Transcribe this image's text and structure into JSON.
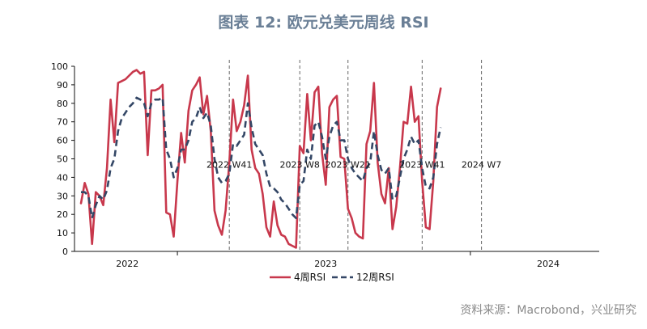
{
  "title": "图表 12: 欧元兑美元周线 RSI",
  "source": "资料来源：Macrobond，兴业研究",
  "colors": {
    "rsi4": "#c8384c",
    "rsi12": "#344766",
    "title": "#6a7f96",
    "vline": "#666666"
  },
  "chart_data": {
    "type": "line",
    "title": "图表 12: 欧元兑美元周线 RSI",
    "xlabel": "",
    "ylabel": "",
    "ylim": [
      0,
      100
    ],
    "yticks": [
      0,
      10,
      20,
      30,
      40,
      50,
      60,
      70,
      80,
      90,
      100
    ],
    "xlim": [
      0,
      138
    ],
    "year_labels": [
      {
        "label": "2022",
        "x": 12.5
      },
      {
        "label": "2023",
        "x": 66
      },
      {
        "label": "2024",
        "x": 126
      }
    ],
    "year_boundaries": [
      26,
      105
    ],
    "annotations": [
      {
        "text": "2022 W41",
        "x": 40,
        "y": 47
      },
      {
        "text": "2023 W8",
        "x": 59,
        "y": 47
      },
      {
        "text": "2023 W21",
        "x": 72,
        "y": 47
      },
      {
        "text": "2023 W41",
        "x": 92,
        "y": 47
      },
      {
        "text": "2024 W7",
        "x": 108,
        "y": 47
      }
    ],
    "vlines": [
      {
        "label": "2022 W41",
        "x": 40
      },
      {
        "label": "2023 W8",
        "x": 59
      },
      {
        "label": "2023 W21",
        "x": 72
      },
      {
        "label": "2023 W41",
        "x": 92
      },
      {
        "label": "2024 W7",
        "x": 108
      }
    ],
    "series": [
      {
        "name": "4周RSI",
        "style": "solid",
        "points": [
          [
            0,
            26
          ],
          [
            1,
            37
          ],
          [
            2,
            31
          ],
          [
            3,
            4
          ],
          [
            4,
            32
          ],
          [
            5,
            30
          ],
          [
            6,
            25
          ],
          [
            7,
            45
          ],
          [
            8,
            82
          ],
          [
            9,
            59
          ],
          [
            10,
            91
          ],
          [
            11,
            92
          ],
          [
            12,
            93
          ],
          [
            13,
            95
          ],
          [
            14,
            97
          ],
          [
            15,
            98
          ],
          [
            16,
            96
          ],
          [
            17,
            97
          ],
          [
            18,
            52
          ],
          [
            19,
            87
          ],
          [
            20,
            87
          ],
          [
            21,
            88
          ],
          [
            22,
            90
          ],
          [
            23,
            21
          ],
          [
            24,
            20
          ],
          [
            25,
            8
          ],
          [
            26,
            38
          ],
          [
            27,
            64
          ],
          [
            28,
            48
          ],
          [
            29,
            76
          ],
          [
            30,
            87
          ],
          [
            31,
            90
          ],
          [
            32,
            94
          ],
          [
            33,
            74
          ],
          [
            34,
            84
          ],
          [
            35,
            65
          ],
          [
            36,
            22
          ],
          [
            37,
            14
          ],
          [
            38,
            9
          ],
          [
            39,
            22
          ],
          [
            40,
            48
          ],
          [
            41,
            82
          ],
          [
            42,
            65
          ],
          [
            43,
            70
          ],
          [
            44,
            79
          ],
          [
            45,
            95
          ],
          [
            46,
            55
          ],
          [
            47,
            45
          ],
          [
            48,
            42
          ],
          [
            49,
            31
          ],
          [
            50,
            13
          ],
          [
            51,
            8
          ],
          [
            52,
            27
          ],
          [
            53,
            14
          ],
          [
            54,
            9
          ],
          [
            55,
            8
          ],
          [
            56,
            4
          ],
          [
            57,
            3
          ],
          [
            58,
            2
          ],
          [
            59,
            57
          ],
          [
            60,
            53
          ],
          [
            61,
            85
          ],
          [
            62,
            60
          ],
          [
            63,
            86
          ],
          [
            64,
            89
          ],
          [
            65,
            53
          ],
          [
            66,
            36
          ],
          [
            67,
            78
          ],
          [
            68,
            82
          ],
          [
            69,
            84
          ],
          [
            70,
            51
          ],
          [
            71,
            50
          ],
          [
            72,
            23
          ],
          [
            73,
            18
          ],
          [
            74,
            10
          ],
          [
            75,
            8
          ],
          [
            76,
            7
          ],
          [
            77,
            58
          ],
          [
            78,
            65
          ],
          [
            79,
            91
          ],
          [
            80,
            48
          ],
          [
            81,
            31
          ],
          [
            82,
            26
          ],
          [
            83,
            45
          ],
          [
            84,
            12
          ],
          [
            85,
            24
          ],
          [
            86,
            45
          ],
          [
            87,
            70
          ],
          [
            88,
            69
          ],
          [
            89,
            89
          ],
          [
            90,
            70
          ],
          [
            91,
            73
          ],
          [
            92,
            38
          ],
          [
            93,
            13
          ],
          [
            94,
            12
          ],
          [
            95,
            38
          ],
          [
            96,
            78
          ],
          [
            97,
            88
          ]
        ]
      },
      {
        "name": "12周RSI",
        "style": "dashed",
        "points": [
          [
            0,
            32
          ],
          [
            1,
            32
          ],
          [
            2,
            30
          ],
          [
            3,
            18
          ],
          [
            4,
            25
          ],
          [
            5,
            30
          ],
          [
            6,
            28
          ],
          [
            7,
            33
          ],
          [
            8,
            45
          ],
          [
            9,
            50
          ],
          [
            10,
            65
          ],
          [
            11,
            72
          ],
          [
            12,
            75
          ],
          [
            13,
            78
          ],
          [
            14,
            80
          ],
          [
            15,
            83
          ],
          [
            16,
            82
          ],
          [
            17,
            80
          ],
          [
            18,
            73
          ],
          [
            19,
            80
          ],
          [
            20,
            82
          ],
          [
            21,
            82
          ],
          [
            22,
            83
          ],
          [
            23,
            55
          ],
          [
            24,
            50
          ],
          [
            25,
            40
          ],
          [
            26,
            45
          ],
          [
            27,
            55
          ],
          [
            28,
            55
          ],
          [
            29,
            60
          ],
          [
            30,
            70
          ],
          [
            31,
            72
          ],
          [
            32,
            78
          ],
          [
            33,
            72
          ],
          [
            34,
            75
          ],
          [
            35,
            68
          ],
          [
            36,
            50
          ],
          [
            37,
            40
          ],
          [
            38,
            37
          ],
          [
            39,
            38
          ],
          [
            40,
            42
          ],
          [
            41,
            58
          ],
          [
            42,
            57
          ],
          [
            43,
            60
          ],
          [
            44,
            63
          ],
          [
            45,
            80
          ],
          [
            46,
            67
          ],
          [
            47,
            58
          ],
          [
            48,
            55
          ],
          [
            49,
            52
          ],
          [
            50,
            42
          ],
          [
            51,
            35
          ],
          [
            52,
            34
          ],
          [
            53,
            32
          ],
          [
            54,
            28
          ],
          [
            55,
            26
          ],
          [
            56,
            23
          ],
          [
            57,
            20
          ],
          [
            58,
            18
          ],
          [
            59,
            36
          ],
          [
            60,
            38
          ],
          [
            61,
            55
          ],
          [
            62,
            50
          ],
          [
            63,
            68
          ],
          [
            64,
            70
          ],
          [
            65,
            62
          ],
          [
            66,
            50
          ],
          [
            67,
            62
          ],
          [
            68,
            68
          ],
          [
            69,
            70
          ],
          [
            70,
            60
          ],
          [
            71,
            60
          ],
          [
            72,
            50
          ],
          [
            73,
            45
          ],
          [
            74,
            42
          ],
          [
            75,
            40
          ],
          [
            76,
            38
          ],
          [
            77,
            45
          ],
          [
            78,
            48
          ],
          [
            79,
            65
          ],
          [
            80,
            52
          ],
          [
            81,
            44
          ],
          [
            82,
            42
          ],
          [
            83,
            45
          ],
          [
            84,
            28
          ],
          [
            85,
            30
          ],
          [
            86,
            40
          ],
          [
            87,
            50
          ],
          [
            88,
            55
          ],
          [
            89,
            62
          ],
          [
            90,
            58
          ],
          [
            91,
            60
          ],
          [
            92,
            45
          ],
          [
            93,
            35
          ],
          [
            94,
            34
          ],
          [
            95,
            40
          ],
          [
            96,
            58
          ],
          [
            97,
            67
          ]
        ]
      }
    ]
  }
}
